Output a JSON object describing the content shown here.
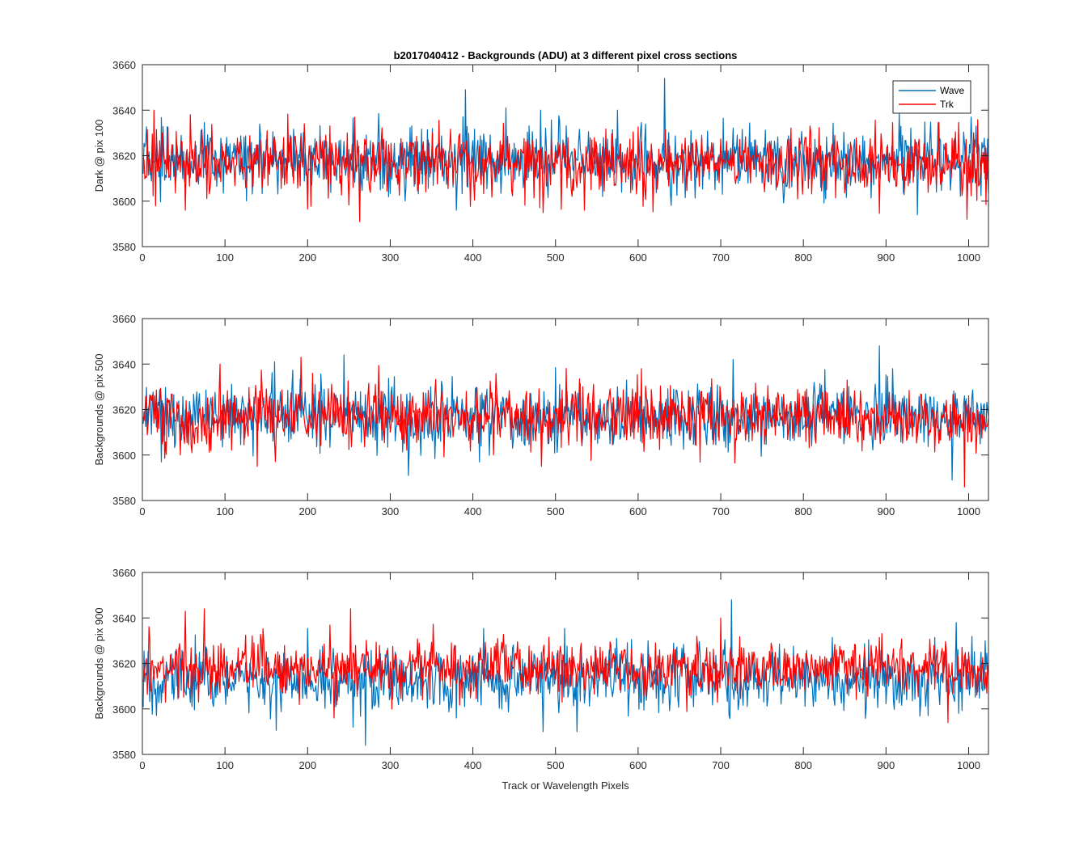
{
  "colors": {
    "wave": "#0072BD",
    "trk": "#FF0000",
    "axis": "#262626",
    "background": "#ffffff"
  },
  "chart_data": [
    {
      "type": "line",
      "title": "b2017040412 - Backgrounds (ADU) at 3 different pixel cross sections",
      "xlabel": "",
      "ylabel": "Dark @ pix 100",
      "xlim": [
        0,
        1024
      ],
      "ylim": [
        3580,
        3660
      ],
      "xticks": [
        0,
        100,
        200,
        300,
        400,
        500,
        600,
        700,
        800,
        900,
        1000
      ],
      "yticks": [
        3580,
        3600,
        3620,
        3640,
        3660
      ],
      "grid": false,
      "legend": {
        "placement": "top-right",
        "entries": [
          "Wave",
          "Trk"
        ]
      },
      "series": [
        {
          "name": "Wave",
          "color": "#0072BD",
          "x_start": 1,
          "x_end": 1024,
          "mean": 3618,
          "spread": 7,
          "peaks": [
            [
              391,
              3649
            ],
            [
              632,
              3654
            ],
            [
              575,
              3640
            ],
            [
              482,
              3640
            ],
            [
              440,
              3641
            ],
            [
              1003,
              3637
            ]
          ],
          "dips": [
            [
              263,
              3592
            ],
            [
              380,
              3596
            ],
            [
              938,
              3594
            ],
            [
              998,
              3596
            ]
          ]
        },
        {
          "name": "Trk",
          "color": "#FF0000",
          "x_start": 1,
          "x_end": 1024,
          "mean": 3617,
          "spread": 7,
          "peaks": [
            [
              14,
              3640
            ],
            [
              58,
              3638
            ],
            [
              196,
              3634
            ]
          ],
          "dips": [
            [
              52,
              3596
            ],
            [
              263,
              3591
            ],
            [
              535,
              3596
            ],
            [
              998,
              3592
            ]
          ]
        }
      ]
    },
    {
      "type": "line",
      "xlabel": "",
      "ylabel": "Backgrounds @ pix 500",
      "xlim": [
        0,
        1024
      ],
      "ylim": [
        3580,
        3660
      ],
      "xticks": [
        0,
        100,
        200,
        300,
        400,
        500,
        600,
        700,
        800,
        900,
        1000
      ],
      "yticks": [
        3580,
        3600,
        3620,
        3640,
        3660
      ],
      "grid": false,
      "series": [
        {
          "name": "Wave",
          "color": "#0072BD",
          "x_start": 1,
          "x_end": 1024,
          "mean": 3617,
          "spread": 7,
          "peaks": [
            [
              244,
              3644
            ],
            [
              892,
              3648
            ],
            [
              715,
              3642
            ],
            [
              160,
              3641
            ]
          ],
          "dips": [
            [
              322,
              3591
            ],
            [
              980,
              3589
            ],
            [
              23,
              3597
            ]
          ]
        },
        {
          "name": "Trk",
          "color": "#FF0000",
          "x_start": 1,
          "x_end": 1024,
          "mean": 3617,
          "spread": 7,
          "peaks": [
            [
              192,
              3643
            ],
            [
              94,
              3640
            ],
            [
              604,
              3638
            ]
          ],
          "dips": [
            [
              139,
              3595
            ],
            [
              483,
              3595
            ],
            [
              995,
              3586
            ]
          ]
        }
      ]
    },
    {
      "type": "line",
      "xlabel": "Track or Wavelength Pixels",
      "ylabel": "Backgrounds @ pix 900",
      "xlim": [
        0,
        1024
      ],
      "ylim": [
        3580,
        3660
      ],
      "xticks": [
        0,
        100,
        200,
        300,
        400,
        500,
        600,
        700,
        800,
        900,
        1000
      ],
      "yticks": [
        3580,
        3600,
        3620,
        3640,
        3660
      ],
      "grid": false,
      "series": [
        {
          "name": "Wave",
          "color": "#0072BD",
          "x_start": 1,
          "x_end": 1024,
          "mean": 3613,
          "spread": 7,
          "peaks": [
            [
              713,
              3648
            ],
            [
              985,
              3638
            ],
            [
              1020,
              3630
            ]
          ],
          "dips": [
            [
              270,
              3584
            ],
            [
              485,
              3590
            ],
            [
              526,
              3590
            ],
            [
              255,
              3592
            ]
          ]
        },
        {
          "name": "Trk",
          "color": "#FF0000",
          "x_start": 1,
          "x_end": 1024,
          "mean": 3618,
          "spread": 6,
          "peaks": [
            [
              75,
              3644
            ],
            [
              252,
              3644
            ],
            [
              52,
              3643
            ],
            [
              700,
              3640
            ]
          ],
          "dips": [
            [
              232,
              3596
            ],
            [
              975,
              3594
            ]
          ]
        }
      ]
    }
  ]
}
